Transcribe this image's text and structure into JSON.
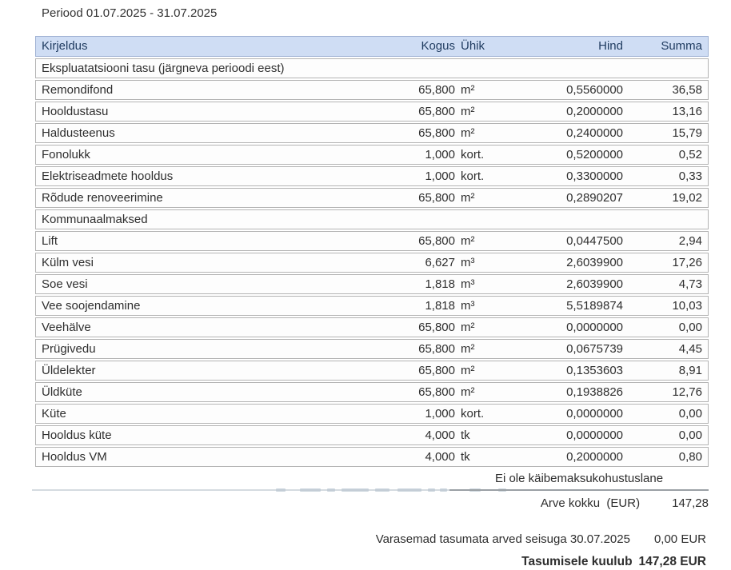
{
  "period_label": "Periood 01.07.2025 - 31.07.2025",
  "table": {
    "columns": [
      "Kirjeldus",
      "Kogus",
      "Ühik",
      "Hind",
      "Summa"
    ],
    "rows": [
      {
        "type": "section",
        "kirjeldus": "Ekspluatatsiooni tasu (järgneva perioodi eest)"
      },
      {
        "type": "item",
        "kirjeldus": "Remondifond",
        "kogus": "65,800",
        "yhik": "m²",
        "hind": "0,5560000",
        "summa": "36,58"
      },
      {
        "type": "item",
        "kirjeldus": "Hooldustasu",
        "kogus": "65,800",
        "yhik": "m²",
        "hind": "0,2000000",
        "summa": "13,16"
      },
      {
        "type": "item",
        "kirjeldus": "Haldusteenus",
        "kogus": "65,800",
        "yhik": "m²",
        "hind": "0,2400000",
        "summa": "15,79"
      },
      {
        "type": "item",
        "kirjeldus": "Fonolukk",
        "kogus": "1,000",
        "yhik": "kort.",
        "hind": "0,5200000",
        "summa": "0,52"
      },
      {
        "type": "item",
        "kirjeldus": "Elektriseadmete hooldus",
        "kogus": "1,000",
        "yhik": "kort.",
        "hind": "0,3300000",
        "summa": "0,33"
      },
      {
        "type": "item",
        "kirjeldus": "Rõdude renoveerimine",
        "kogus": "65,800",
        "yhik": "m²",
        "hind": "0,2890207",
        "summa": "19,02"
      },
      {
        "type": "section",
        "kirjeldus": "Kommunaalmaksed"
      },
      {
        "type": "item",
        "kirjeldus": "Lift",
        "kogus": "65,800",
        "yhik": "m²",
        "hind": "0,0447500",
        "summa": "2,94"
      },
      {
        "type": "item",
        "kirjeldus": "Külm vesi",
        "kogus": "6,627",
        "yhik": "m³",
        "hind": "2,6039900",
        "summa": "17,26"
      },
      {
        "type": "item",
        "kirjeldus": "Soe vesi",
        "kogus": "1,818",
        "yhik": "m³",
        "hind": "2,6039900",
        "summa": "4,73"
      },
      {
        "type": "item",
        "kirjeldus": "Vee soojendamine",
        "kogus": "1,818",
        "yhik": "m³",
        "hind": "5,5189874",
        "summa": "10,03"
      },
      {
        "type": "item",
        "kirjeldus": "Veehälve",
        "kogus": "65,800",
        "yhik": "m²",
        "hind": "0,0000000",
        "summa": "0,00"
      },
      {
        "type": "item",
        "kirjeldus": "Prügivedu",
        "kogus": "65,800",
        "yhik": "m²",
        "hind": "0,0675739",
        "summa": "4,45"
      },
      {
        "type": "item",
        "kirjeldus": "Üldelekter",
        "kogus": "65,800",
        "yhik": "m²",
        "hind": "0,1353603",
        "summa": "8,91"
      },
      {
        "type": "item",
        "kirjeldus": "Üldküte",
        "kogus": "65,800",
        "yhik": "m²",
        "hind": "0,1938826",
        "summa": "12,76"
      },
      {
        "type": "item",
        "kirjeldus": "Küte",
        "kogus": "1,000",
        "yhik": "kort.",
        "hind": "0,0000000",
        "summa": "0,00"
      },
      {
        "type": "item",
        "kirjeldus": "Hooldus küte",
        "kogus": "4,000",
        "yhik": "tk",
        "hind": "0,0000000",
        "summa": "0,00"
      },
      {
        "type": "item",
        "kirjeldus": "Hooldus VM",
        "kogus": "4,000",
        "yhik": "tk",
        "hind": "0,2000000",
        "summa": "0,80"
      }
    ]
  },
  "summary": {
    "vat_note": "Ei ole käibemaksukohustuslane",
    "total_label": "Arve kokku  (EUR)",
    "total_value": "147,28",
    "previous_label": "Varasemad tasumata arved seisuga 30.07.2025",
    "previous_value": "0,00 EUR",
    "due_label": "Tasumisele kuulub",
    "due_value": "147,28 EUR"
  },
  "colors": {
    "header_bg": "#cfddf4",
    "header_border": "#9fb1d3",
    "header_text": "#1e3a5f",
    "row_border": "#b3b3b3",
    "row_bg": "#fdfdfd",
    "text": "#2e2e2e",
    "summary_rule": "#9aa0a5",
    "watermark": "#bcc8d3"
  }
}
